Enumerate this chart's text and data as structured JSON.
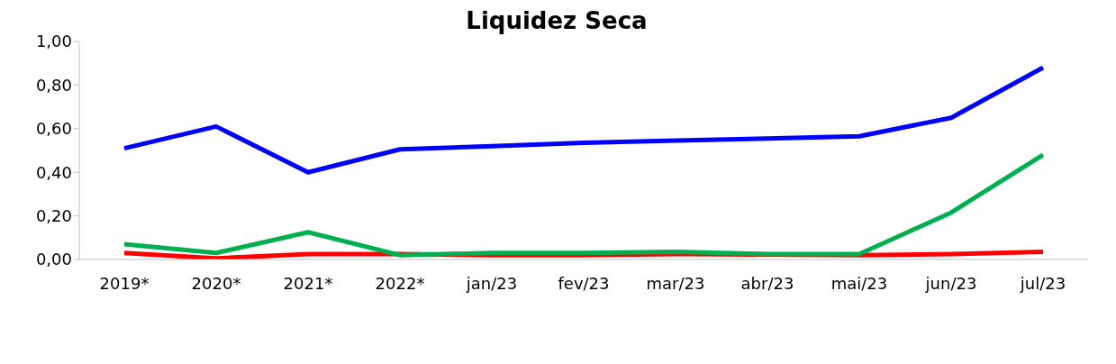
{
  "chart_data": {
    "type": "line",
    "title": "Liquidez Seca",
    "categories": [
      "2019*",
      "2020*",
      "2021*",
      "2022*",
      "jan/23",
      "fev/23",
      "mar/23",
      "abr/23",
      "mai/23",
      "jun/23",
      "jul/23"
    ],
    "series": [
      {
        "color": "#0000ff",
        "values": [
          0.51,
          0.61,
          0.4,
          0.505,
          0.52,
          0.535,
          0.545,
          0.555,
          0.565,
          0.65,
          0.88
        ]
      },
      {
        "color": "#ff0000",
        "values": [
          0.03,
          0.005,
          0.025,
          0.025,
          0.02,
          0.02,
          0.025,
          null,
          0.02,
          0.025,
          0.035
        ]
      },
      {
        "color": "#00b050",
        "values": [
          0.07,
          0.03,
          0.125,
          0.02,
          0.03,
          0.03,
          0.035,
          0.025,
          0.025,
          0.215,
          0.48
        ]
      }
    ],
    "ylim": [
      0,
      1
    ],
    "yticks": [
      {
        "value": 0,
        "label": "0,00"
      },
      {
        "value": 0.2,
        "label": "0,20"
      },
      {
        "value": 0.4,
        "label": "0,40"
      },
      {
        "value": 0.6,
        "label": "0,60"
      },
      {
        "value": 0.8,
        "label": "0,80"
      },
      {
        "value": 1,
        "label": "1,00"
      }
    ],
    "grid": false,
    "legend": false,
    "marker": "none",
    "line_style": "solid"
  }
}
